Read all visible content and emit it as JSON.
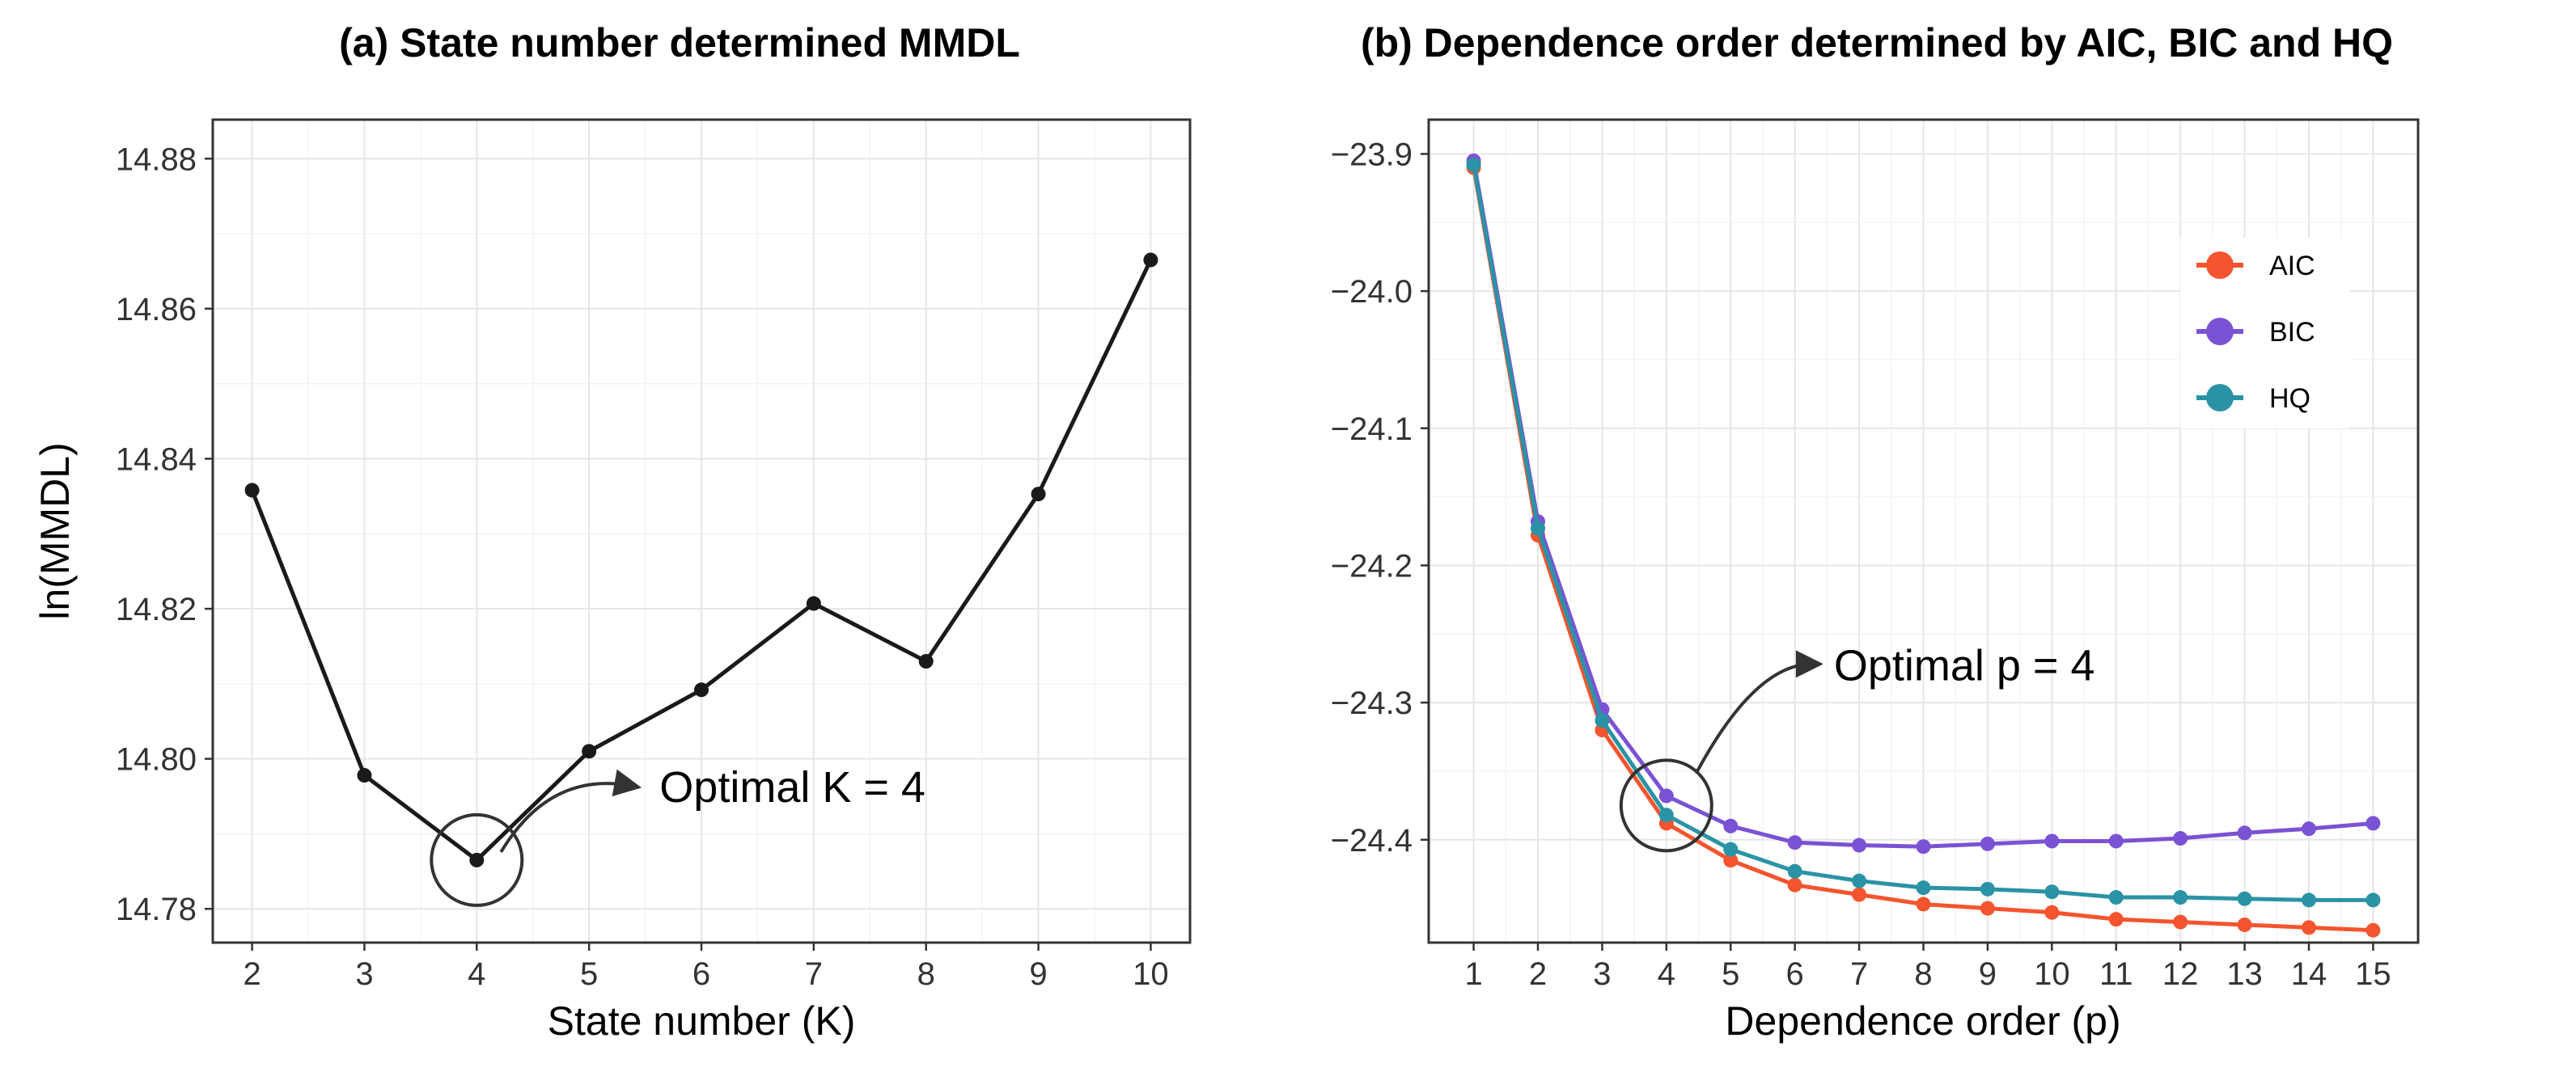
{
  "chart_data": [
    {
      "type": "line",
      "title": "(a) State number determined MMDL",
      "xlabel": "State number (K)",
      "ylabel": "ln(MMDL)",
      "x": [
        2,
        3,
        4,
        5,
        6,
        7,
        8,
        9,
        10
      ],
      "xlim": [
        1.65,
        10.35
      ],
      "ylim": [
        14.7755,
        14.8852
      ],
      "yticks": [
        14.78,
        14.8,
        14.82,
        14.84,
        14.86,
        14.88
      ],
      "ytick_labels": [
        "14.78",
        "14.80",
        "14.82",
        "14.84",
        "14.86",
        "14.88"
      ],
      "xtick_labels": [
        "2",
        "3",
        "4",
        "5",
        "6",
        "7",
        "8",
        "9",
        "10"
      ],
      "series": [
        {
          "name": "ln(MMDL)",
          "color": "#1a1a1a",
          "values": [
            14.8358,
            14.7978,
            14.7865,
            14.801,
            14.8092,
            14.8207,
            14.813,
            14.8353,
            14.8665
          ]
        }
      ],
      "annotation": {
        "text": "Optimal K = 4",
        "x": 4,
        "y": 14.7865
      }
    },
    {
      "type": "line",
      "title": "(b) Dependence order determined by AIC, BIC and HQ",
      "xlabel": "Dependence order (p)",
      "ylabel": "",
      "x": [
        1,
        2,
        3,
        4,
        5,
        6,
        7,
        8,
        9,
        10,
        11,
        12,
        13,
        14,
        15
      ],
      "xlim": [
        0.3,
        15.7
      ],
      "ylim": [
        -24.475,
        -23.875
      ],
      "yticks": [
        -24.4,
        -24.3,
        -24.2,
        -24.1,
        -24.0,
        -23.9
      ],
      "ytick_labels": [
        "−24.4",
        "−24.3",
        "−24.2",
        "−24.1",
        "−24.0",
        "−23.9"
      ],
      "xtick_labels": [
        "1",
        "2",
        "3",
        "4",
        "5",
        "6",
        "7",
        "8",
        "9",
        "10",
        "11",
        "12",
        "13",
        "14",
        "15"
      ],
      "legend_position": "top-right",
      "series": [
        {
          "name": "AIC",
          "color": "#f4542e",
          "values": [
            -23.91,
            -24.178,
            -24.32,
            -24.388,
            -24.415,
            -24.433,
            -24.44,
            -24.447,
            -24.45,
            -24.453,
            -24.458,
            -24.46,
            -24.462,
            -24.464,
            -24.466
          ]
        },
        {
          "name": "BIC",
          "color": "#7b52d4",
          "values": [
            -23.905,
            -24.168,
            -24.305,
            -24.368,
            -24.39,
            -24.402,
            -24.404,
            -24.405,
            -24.403,
            -24.401,
            -24.401,
            -24.399,
            -24.395,
            -24.392,
            -24.388
          ]
        },
        {
          "name": "HQ",
          "color": "#2a93a5",
          "values": [
            -23.908,
            -24.173,
            -24.313,
            -24.382,
            -24.407,
            -24.423,
            -24.43,
            -24.435,
            -24.436,
            -24.438,
            -24.442,
            -24.442,
            -24.443,
            -24.444,
            -24.444
          ]
        }
      ],
      "annotation": {
        "text": "Optimal p = 4",
        "x": 4,
        "y": -24.375
      }
    }
  ]
}
